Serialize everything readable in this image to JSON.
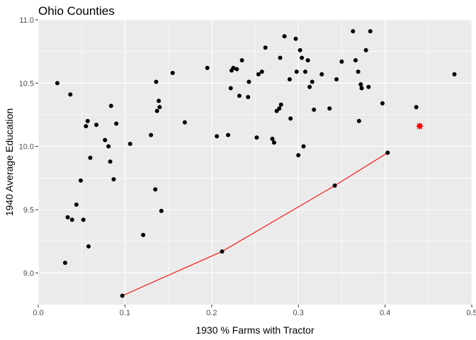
{
  "chart_data": {
    "type": "scatter",
    "title": "Ohio Counties",
    "xlabel": "1930 % Farms with Tractor",
    "ylabel": "1940 Average Education",
    "xlim": [
      0.0,
      0.5
    ],
    "ylim": [
      8.75,
      11.0
    ],
    "x_ticks": [
      0.0,
      0.1,
      0.2,
      0.3,
      0.4,
      0.5
    ],
    "x_tick_labels": [
      "0.0",
      "0.1",
      "0.2",
      "0.3",
      "0.4",
      "0.5"
    ],
    "y_ticks": [
      9.0,
      9.5,
      10.0,
      10.5,
      11.0
    ],
    "y_tick_labels": [
      "9.0",
      "9.5",
      "10.0",
      "10.5",
      "11.0"
    ],
    "grid": true,
    "colors": {
      "panel": "#ebebeb",
      "grid": "#ffffff",
      "points": "#000000",
      "line": "#ff0000",
      "highlight": "#ff0000"
    },
    "points": [
      [
        0.022,
        10.5
      ],
      [
        0.031,
        9.08
      ],
      [
        0.034,
        9.44
      ],
      [
        0.037,
        10.41
      ],
      [
        0.039,
        9.42
      ],
      [
        0.044,
        9.54
      ],
      [
        0.049,
        9.73
      ],
      [
        0.052,
        9.42
      ],
      [
        0.055,
        10.16
      ],
      [
        0.057,
        10.2
      ],
      [
        0.058,
        9.21
      ],
      [
        0.06,
        9.91
      ],
      [
        0.067,
        10.17
      ],
      [
        0.077,
        10.05
      ],
      [
        0.081,
        10.0
      ],
      [
        0.083,
        9.88
      ],
      [
        0.084,
        10.32
      ],
      [
        0.087,
        9.74
      ],
      [
        0.09,
        10.18
      ],
      [
        0.106,
        10.02
      ],
      [
        0.121,
        9.3
      ],
      [
        0.13,
        10.09
      ],
      [
        0.135,
        9.66
      ],
      [
        0.136,
        10.51
      ],
      [
        0.137,
        10.28
      ],
      [
        0.139,
        10.36
      ],
      [
        0.14,
        10.31
      ],
      [
        0.142,
        9.49
      ],
      [
        0.155,
        10.58
      ],
      [
        0.169,
        10.19
      ],
      [
        0.195,
        10.62
      ],
      [
        0.206,
        10.08
      ],
      [
        0.219,
        10.09
      ],
      [
        0.222,
        10.46
      ],
      [
        0.223,
        10.6
      ],
      [
        0.225,
        10.62
      ],
      [
        0.229,
        10.61
      ],
      [
        0.232,
        10.4
      ],
      [
        0.235,
        10.68
      ],
      [
        0.242,
        10.39
      ],
      [
        0.243,
        10.51
      ],
      [
        0.252,
        10.07
      ],
      [
        0.254,
        10.57
      ],
      [
        0.258,
        10.59
      ],
      [
        0.262,
        10.78
      ],
      [
        0.27,
        10.06
      ],
      [
        0.272,
        10.03
      ],
      [
        0.275,
        10.28
      ],
      [
        0.278,
        10.3
      ],
      [
        0.279,
        10.7
      ],
      [
        0.28,
        10.33
      ],
      [
        0.284,
        10.87
      ],
      [
        0.29,
        10.53
      ],
      [
        0.291,
        10.22
      ],
      [
        0.297,
        10.85
      ],
      [
        0.298,
        10.59
      ],
      [
        0.3,
        9.93
      ],
      [
        0.302,
        10.76
      ],
      [
        0.304,
        10.7
      ],
      [
        0.306,
        10.0
      ],
      [
        0.308,
        10.59
      ],
      [
        0.311,
        10.68
      ],
      [
        0.313,
        10.47
      ],
      [
        0.316,
        10.51
      ],
      [
        0.318,
        10.29
      ],
      [
        0.327,
        10.57
      ],
      [
        0.336,
        10.3
      ],
      [
        0.344,
        10.53
      ],
      [
        0.35,
        10.67
      ],
      [
        0.363,
        10.91
      ],
      [
        0.366,
        10.68
      ],
      [
        0.369,
        10.59
      ],
      [
        0.37,
        10.2
      ],
      [
        0.372,
        10.49
      ],
      [
        0.373,
        10.46
      ],
      [
        0.378,
        10.76
      ],
      [
        0.381,
        10.47
      ],
      [
        0.383,
        10.91
      ],
      [
        0.397,
        10.34
      ],
      [
        0.436,
        10.31
      ],
      [
        0.48,
        10.57
      ]
    ],
    "highlight_point": [
      0.44,
      10.16
    ],
    "line": [
      [
        0.097,
        8.82
      ],
      [
        0.212,
        9.17
      ],
      [
        0.342,
        9.69
      ],
      [
        0.403,
        9.95
      ]
    ]
  }
}
